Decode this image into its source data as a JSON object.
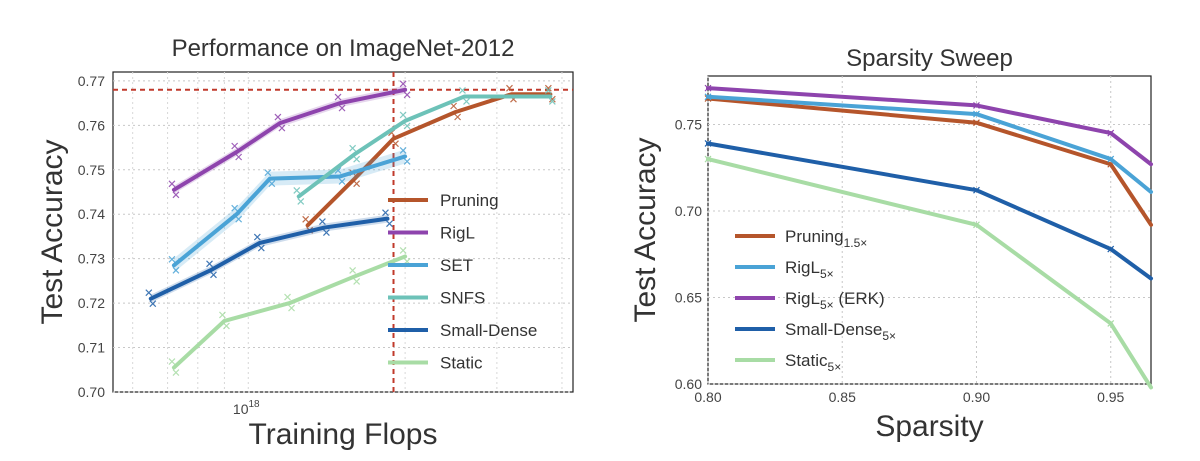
{
  "chart_data": [
    {
      "type": "line",
      "title": "Performance on ImageNet-2012",
      "xlabel": "Training Flops",
      "ylabel": "Test Accuracy",
      "xscale": "log",
      "xticks": [
        "10^18"
      ],
      "yticks": [
        "0.70",
        "0.71",
        "0.72",
        "0.73",
        "0.74",
        "0.75",
        "0.76",
        "0.77"
      ],
      "ylim": [
        0.7,
        0.772
      ],
      "grid": true,
      "legend_position": "lower-right",
      "reference_lines": {
        "horizontal_y": 0.768,
        "vertical_x_flops": 1.9e+18,
        "style": "dashed",
        "color": "#c0392b"
      },
      "series": [
        {
          "name": "Pruning",
          "color": "#b5552b",
          "points": [
            [
              1.3e+18,
              0.7375
            ],
            [
              1.6e+18,
              0.748
            ],
            [
              1.9e+18,
              0.757
            ],
            [
              2.5e+18,
              0.763
            ],
            [
              3.2e+18,
              0.767
            ],
            [
              3.8e+18,
              0.767
            ]
          ]
        },
        {
          "name": "RigL",
          "color": "#8e44ad",
          "points": [
            [
              7.2e+17,
              0.7455
            ],
            [
              9.5e+17,
              0.754
            ],
            [
              1.15e+18,
              0.7605
            ],
            [
              1.5e+18,
              0.765
            ],
            [
              2e+18,
              0.768
            ]
          ]
        },
        {
          "name": "SET",
          "color": "#4aa3d6",
          "points": [
            [
              7.2e+17,
              0.7285
            ],
            [
              9.5e+17,
              0.74
            ],
            [
              1.1e+18,
              0.748
            ],
            [
              1.5e+18,
              0.7485
            ],
            [
              2e+18,
              0.753
            ]
          ]
        },
        {
          "name": "SNFS",
          "color": "#6dc2b8",
          "points": [
            [
              1.25e+18,
              0.744
            ],
            [
              1.6e+18,
              0.7535
            ],
            [
              2e+18,
              0.761
            ],
            [
              2.6e+18,
              0.7665
            ],
            [
              3.8e+18,
              0.7665
            ]
          ]
        },
        {
          "name": "Small-Dense",
          "color": "#1f5fa8",
          "points": [
            [
              6.5e+17,
              0.721
            ],
            [
              8.5e+17,
              0.7275
            ],
            [
              1.05e+18,
              0.7335
            ],
            [
              1.4e+18,
              0.737
            ],
            [
              1.85e+18,
              0.739
            ]
          ]
        },
        {
          "name": "Static",
          "color": "#a8dca5",
          "points": [
            [
              7.2e+17,
              0.7055
            ],
            [
              9e+17,
              0.716
            ],
            [
              1.2e+18,
              0.72
            ],
            [
              1.6e+18,
              0.726
            ],
            [
              2e+18,
              0.7305
            ]
          ]
        }
      ],
      "legend": [
        "Pruning",
        "RigL",
        "SET",
        "SNFS",
        "Small-Dense",
        "Static"
      ]
    },
    {
      "type": "line",
      "title": "Sparsity Sweep",
      "xlabel": "Sparsity",
      "ylabel": "Test Accuracy",
      "xticks": [
        "0.80",
        "0.85",
        "0.90",
        "0.95"
      ],
      "yticks": [
        "0.60",
        "0.65",
        "0.70",
        "0.75"
      ],
      "xlim": [
        0.8,
        0.965
      ],
      "ylim": [
        0.6,
        0.778
      ],
      "grid": true,
      "legend_position": "lower-left",
      "x": [
        0.8,
        0.9,
        0.95,
        0.965
      ],
      "series": [
        {
          "name": "Pruning",
          "sub": "1.5×",
          "color": "#b5552b",
          "values": [
            0.765,
            0.751,
            0.727,
            0.692
          ]
        },
        {
          "name": "RigL",
          "sub": "5×",
          "color": "#4aa3d6",
          "values": [
            0.766,
            0.756,
            0.73,
            0.711
          ]
        },
        {
          "name": "RigL",
          "sub": "5×",
          "suffix": " (ERK)",
          "color": "#8e44ad",
          "values": [
            0.771,
            0.761,
            0.745,
            0.727
          ]
        },
        {
          "name": "Small-Dense",
          "sub": "5×",
          "color": "#1f5fa8",
          "values": [
            0.739,
            0.712,
            0.678,
            0.661
          ]
        },
        {
          "name": "Static",
          "sub": "5×",
          "color": "#a8dca5",
          "values": [
            0.73,
            0.692,
            0.635,
            0.598
          ]
        }
      ]
    }
  ]
}
